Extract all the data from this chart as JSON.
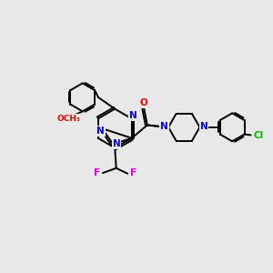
{
  "background_color": "#e8e8e8",
  "figsize": [
    3.0,
    3.0
  ],
  "dpi": 100,
  "atom_colors": {
    "N": "#0000ee",
    "O": "#ee0000",
    "F": "#dd00dd",
    "Cl": "#00bb00",
    "C": "#000000"
  },
  "bond_color": "#000000",
  "bond_width": 1.4,
  "font_size_atoms": 7.5,
  "font_size_small": 6.5
}
